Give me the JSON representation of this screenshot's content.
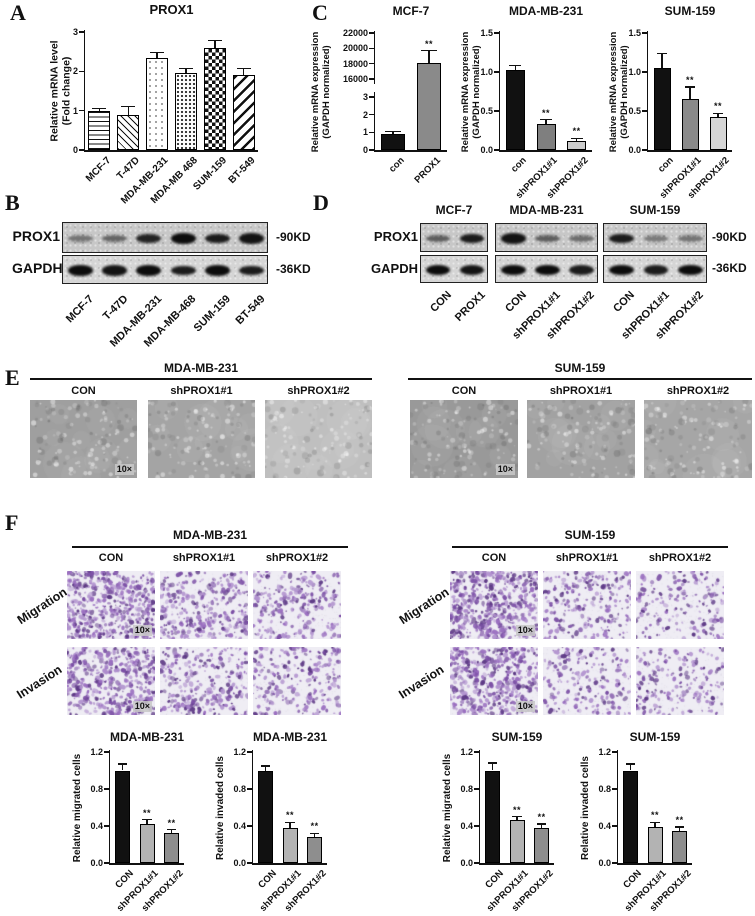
{
  "figure": {
    "background": "#ffffff"
  },
  "panels": {
    "a": {
      "letter": "A"
    },
    "b": {
      "letter": "B",
      "row_labels": [
        "PROX1",
        "GAPDH"
      ],
      "kd_labels": [
        "-90KD",
        "-36KD"
      ],
      "groups": [
        {
          "name": "",
          "lanes": [
            "MCF-7",
            "T-47D",
            "MDA-MB-231",
            "MDA-MB-468",
            "SUM-159",
            "BT-549"
          ],
          "bands": [
            [
              0.3,
              0.4,
              0.85,
              1,
              0.9,
              0.95
            ],
            [
              1,
              0.95,
              1,
              0.9,
              1,
              0.9
            ]
          ]
        }
      ]
    },
    "c": {
      "letter": "C"
    },
    "d": {
      "letter": "D",
      "row_labels": [
        "PROX1",
        "GAPDH"
      ],
      "kd_labels": [
        "-90KD",
        "-36KD"
      ],
      "groups": [
        {
          "name": "MCF-7",
          "lanes": [
            "CON",
            "PROX1"
          ],
          "bands": [
            [
              0.45,
              0.9
            ],
            [
              1,
              0.95
            ]
          ]
        },
        {
          "name": "MDA-MB-231",
          "lanes": [
            "CON",
            "shPROX1#1",
            "shPROX1#2"
          ],
          "bands": [
            [
              0.95,
              0.45,
              0.35
            ],
            [
              1,
              1,
              0.9
            ]
          ]
        },
        {
          "name": "SUM-159",
          "lanes": [
            "CON",
            "shPROX1#1",
            "shPROX1#2"
          ],
          "bands": [
            [
              0.9,
              0.25,
              0.3
            ],
            [
              1,
              0.9,
              1
            ]
          ]
        }
      ]
    },
    "e": {
      "letter": "E",
      "badge": "10×",
      "groups": [
        {
          "name": "MDA-MB-231",
          "cols": [
            "CON",
            "shPROX1#1",
            "shPROX1#2"
          ],
          "shades": [
            "#9f9f9f",
            "#a4a4a4",
            "#bfbfbf"
          ]
        },
        {
          "name": "SUM-159",
          "cols": [
            "CON",
            "shPROX1#1",
            "shPROX1#2"
          ],
          "shades": [
            "#999999",
            "#a2a2a2",
            "#a6a6a6"
          ]
        }
      ]
    },
    "f": {
      "letter": "F",
      "badge": "10×",
      "row_labels": [
        "Migration",
        "Invasion"
      ],
      "cols": [
        "CON",
        "shPROX1#1",
        "shPROX1#2"
      ],
      "groups": [
        {
          "name": "MDA-MB-231",
          "densities": [
            [
              520,
              300,
              260
            ],
            [
              430,
              280,
              230
            ]
          ]
        },
        {
          "name": "SUM-159",
          "densities": [
            [
              500,
              230,
              180
            ],
            [
              470,
              200,
              190
            ]
          ]
        }
      ],
      "stain_colors": [
        "#5e3a86",
        "#7b4fa5",
        "#9a6fc0",
        "#b294cf"
      ],
      "bg_color": "#efedf4"
    }
  },
  "chart_data": [
    {
      "type": "bar",
      "title": "PROX1",
      "ylabel_lines": [
        "Relative mRNA level",
        "(Fold change)"
      ],
      "ylim": [
        0,
        3
      ],
      "yticks": [
        "0",
        "1",
        "2",
        "3"
      ],
      "categories": [
        "MCF-7",
        "T-47D",
        "MDA-MB-231",
        "MDA-MB 468",
        "SUM-159",
        "BT-549"
      ],
      "values": [
        1.0,
        0.9,
        2.35,
        1.95,
        2.6,
        1.9
      ],
      "errors": [
        0.05,
        0.2,
        0.13,
        0.12,
        0.18,
        0.17
      ],
      "patterns": [
        "hlines",
        "diag-thin",
        "dots-sparse",
        "dots-dense",
        "checker",
        "diag-thick"
      ],
      "sig": [
        "",
        "",
        "",
        "",
        "",
        ""
      ]
    },
    {
      "type": "bar",
      "title": "MCF-7",
      "broken": true,
      "ylabel_lines": [
        "Relative mRNA expression",
        "(GAPDH normalized)"
      ],
      "upper": {
        "ylim": [
          16000,
          22000
        ],
        "yticks": [
          "16000",
          "18000",
          "20000",
          "22000"
        ]
      },
      "lower": {
        "ylim": [
          0,
          3
        ],
        "yticks": [
          "0",
          "1",
          "2",
          "3"
        ]
      },
      "categories": [
        "con",
        "PROX1"
      ],
      "values": [
        0.9,
        18100
      ],
      "errors": [
        0.15,
        1600
      ],
      "scales": [
        "lower",
        "upper"
      ],
      "colors": [
        "#111111",
        "#8a8a8a"
      ],
      "sig": [
        "",
        "**"
      ]
    },
    {
      "type": "bar",
      "title": "MDA-MB-231",
      "ylabel_lines": [
        "Relative mRNA expression",
        "(GAPDH normalized)"
      ],
      "ylim": [
        0,
        1.5
      ],
      "yticks": [
        "0.0",
        "0.5",
        "1.0",
        "1.5"
      ],
      "categories": [
        "con",
        "shPROX1#1",
        "shPROX1#2"
      ],
      "values": [
        1.03,
        0.33,
        0.12
      ],
      "errors": [
        0.05,
        0.06,
        0.03
      ],
      "colors": [
        "#111111",
        "#7f7f7f",
        "#cccccc"
      ],
      "sig": [
        "",
        "**",
        "**"
      ]
    },
    {
      "type": "bar",
      "title": "SUM-159",
      "ylabel_lines": [
        "Relative mRNA expression",
        "(GAPDH normalized)"
      ],
      "ylim": [
        0,
        1.5
      ],
      "yticks": [
        "0.0",
        "0.5",
        "1.0",
        "1.5"
      ],
      "categories": [
        "con",
        "shPROX1#1",
        "shPROX1#2"
      ],
      "values": [
        1.05,
        0.65,
        0.42
      ],
      "errors": [
        0.19,
        0.16,
        0.05
      ],
      "colors": [
        "#111111",
        "#8a8a8a",
        "#d6d6d6"
      ],
      "sig": [
        "",
        "**",
        "**"
      ]
    },
    {
      "type": "bar",
      "title": "MDA-MB-231",
      "ylabel_lines": [
        "Relative migrated cells"
      ],
      "ylim": [
        0,
        1.2
      ],
      "yticks": [
        "0.0",
        "0.4",
        "0.8",
        "1.2"
      ],
      "categories": [
        "CON",
        "shPROX1#1",
        "shPROX1#2"
      ],
      "values": [
        1.0,
        0.42,
        0.32
      ],
      "errors": [
        0.07,
        0.05,
        0.04
      ],
      "colors": [
        "#111111",
        "#b3b3b3",
        "#8e8e8e"
      ],
      "sig": [
        "",
        "**",
        "**"
      ]
    },
    {
      "type": "bar",
      "title": "MDA-MB-231",
      "ylabel_lines": [
        "Relative invaded cells"
      ],
      "ylim": [
        0,
        1.2
      ],
      "yticks": [
        "0.0",
        "0.4",
        "0.8",
        "1.2"
      ],
      "categories": [
        "CON",
        "shPROX1#1",
        "shPROX1#2"
      ],
      "values": [
        1.0,
        0.38,
        0.28
      ],
      "errors": [
        0.05,
        0.06,
        0.04
      ],
      "colors": [
        "#111111",
        "#b3b3b3",
        "#8e8e8e"
      ],
      "sig": [
        "",
        "**",
        "**"
      ]
    },
    {
      "type": "bar",
      "title": "SUM-159",
      "ylabel_lines": [
        "Relative migrated cells"
      ],
      "ylim": [
        0,
        1.2
      ],
      "yticks": [
        "0.0",
        "0.4",
        "0.8",
        "1.2"
      ],
      "categories": [
        "CON",
        "shPROX1#1",
        "shPROX1#2"
      ],
      "values": [
        1.0,
        0.46,
        0.38
      ],
      "errors": [
        0.08,
        0.04,
        0.04
      ],
      "colors": [
        "#111111",
        "#b3b3b3",
        "#8e8e8e"
      ],
      "sig": [
        "",
        "**",
        "**"
      ]
    },
    {
      "type": "bar",
      "title": "SUM-159",
      "ylabel_lines": [
        "Relative invaded cells"
      ],
      "ylim": [
        0,
        1.2
      ],
      "yticks": [
        "0.0",
        "0.4",
        "0.8",
        "1.2"
      ],
      "categories": [
        "CON",
        "shPROX1#1",
        "shPROX1#2"
      ],
      "values": [
        1.0,
        0.39,
        0.35
      ],
      "errors": [
        0.07,
        0.05,
        0.04
      ],
      "colors": [
        "#111111",
        "#b3b3b3",
        "#8e8e8e"
      ],
      "sig": [
        "",
        "**",
        "**"
      ]
    }
  ]
}
